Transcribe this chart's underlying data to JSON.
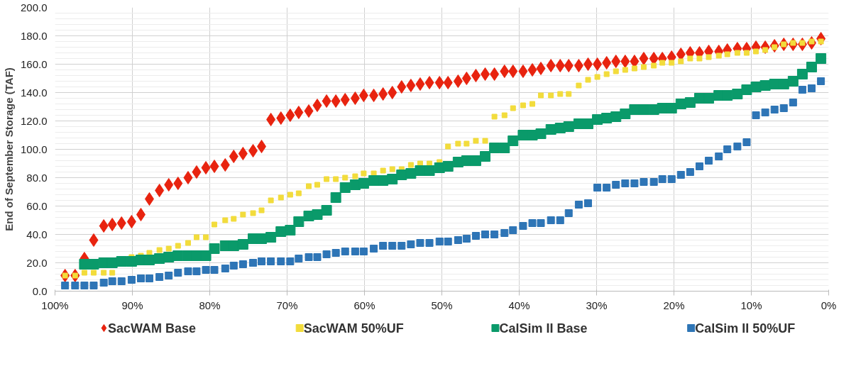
{
  "chart_data": {
    "type": "scatter",
    "ylabel": "End of September Storage (TAF)",
    "x": [
      98.7,
      97.4,
      96.2,
      95.0,
      93.7,
      92.6,
      91.4,
      90.1,
      88.9,
      87.8,
      86.5,
      85.3,
      84.1,
      82.8,
      81.7,
      80.5,
      79.4,
      78.0,
      76.9,
      75.7,
      74.4,
      73.3,
      72.1,
      70.8,
      69.6,
      68.5,
      67.2,
      66.1,
      64.9,
      63.7,
      62.5,
      61.2,
      60.1,
      58.8,
      57.6,
      56.4,
      55.2,
      54.0,
      52.8,
      51.6,
      50.3,
      49.2,
      47.9,
      46.8,
      45.6,
      44.4,
      43.2,
      41.9,
      40.8,
      39.5,
      38.3,
      37.2,
      35.9,
      34.7,
      33.6,
      32.3,
      31.1,
      29.9,
      28.7,
      27.5,
      26.3,
      25.1,
      23.9,
      22.6,
      21.5,
      20.3,
      19.1,
      17.9,
      16.7,
      15.5,
      14.2,
      13.1,
      11.8,
      10.6,
      9.4,
      8.2,
      7.0,
      5.8,
      4.6,
      3.4,
      2.2,
      1.0
    ],
    "series": [
      {
        "name": "SacWAM Base",
        "color": "#e8230f",
        "marker": "diamond",
        "values": [
          11,
          11,
          23,
          36,
          46,
          47,
          48,
          49,
          54,
          65,
          71,
          75,
          76,
          80,
          84,
          87,
          88,
          89,
          95,
          97,
          99,
          102,
          121,
          122,
          124,
          126,
          127,
          131,
          134,
          134,
          135,
          136,
          138,
          138,
          139,
          140,
          144,
          145,
          146,
          147,
          147,
          147,
          148,
          150,
          152,
          153,
          153,
          155,
          155,
          155,
          156,
          157,
          159,
          159,
          159,
          159,
          160,
          160,
          161,
          162,
          162,
          162,
          164,
          164,
          164,
          165,
          167,
          168,
          168,
          169,
          169,
          170,
          171,
          171,
          172,
          172,
          173,
          174,
          174,
          174,
          175,
          178
        ]
      },
      {
        "name": "SacWAM 50%UF",
        "color": "#f2dc3c",
        "marker": "square",
        "values": [
          11,
          11,
          13,
          13,
          13,
          13,
          null,
          24,
          25,
          27,
          29,
          30,
          32,
          34,
          38,
          38,
          47,
          50,
          51,
          54,
          55,
          57,
          64,
          66,
          68,
          69,
          74,
          75,
          79,
          79,
          80,
          81,
          83,
          83,
          85,
          86,
          86,
          89,
          90,
          90,
          91,
          102,
          104,
          104,
          106,
          106,
          123,
          124,
          129,
          131,
          132,
          138,
          138,
          139,
          139,
          145,
          149,
          151,
          153,
          155,
          156,
          157,
          158,
          159,
          161,
          161,
          162,
          164,
          164,
          165,
          166,
          167,
          168,
          168,
          169,
          170,
          172,
          174,
          175,
          175,
          176,
          176
        ]
      },
      {
        "name": "CalSim II Base",
        "color": "#0a9a6a",
        "marker": "square",
        "values": [
          null,
          null,
          19,
          19,
          20,
          20,
          21,
          21,
          22,
          22,
          23,
          24,
          25,
          25,
          25,
          25,
          30,
          32,
          32,
          33,
          37,
          37,
          38,
          42,
          43,
          49,
          53,
          54,
          57,
          66,
          73,
          75,
          76,
          78,
          78,
          79,
          82,
          83,
          85,
          85,
          87,
          88,
          91,
          92,
          92,
          95,
          101,
          101,
          106,
          110,
          110,
          111,
          114,
          115,
          116,
          118,
          118,
          121,
          122,
          123,
          125,
          128,
          128,
          128,
          129,
          129,
          132,
          133,
          136,
          136,
          138,
          138,
          139,
          142,
          144,
          145,
          146,
          146,
          148,
          153,
          158,
          164
        ]
      },
      {
        "name": "CalSim II 50%UF",
        "color": "#2e75b6",
        "marker": "square",
        "values": [
          4,
          4,
          4,
          4,
          6,
          7,
          7,
          8,
          9,
          9,
          10,
          11,
          13,
          14,
          14,
          15,
          15,
          16,
          18,
          19,
          20,
          21,
          21,
          21,
          21,
          23,
          24,
          24,
          26,
          27,
          28,
          28,
          28,
          30,
          32,
          32,
          32,
          33,
          34,
          34,
          35,
          35,
          36,
          37,
          39,
          40,
          40,
          41,
          43,
          46,
          48,
          48,
          50,
          50,
          55,
          61,
          62,
          73,
          73,
          75,
          76,
          76,
          77,
          77,
          79,
          79,
          82,
          84,
          88,
          92,
          95,
          100,
          102,
          105,
          124,
          126,
          128,
          129,
          133,
          142,
          143,
          148
        ]
      }
    ],
    "xlim": [
      100,
      0
    ],
    "xticks": [
      {
        "value": 100,
        "label": "100%"
      },
      {
        "value": 90,
        "label": "90%"
      },
      {
        "value": 80,
        "label": "80%"
      },
      {
        "value": 70,
        "label": "70%"
      },
      {
        "value": 60,
        "label": "60%"
      },
      {
        "value": 50,
        "label": "50%"
      },
      {
        "value": 40,
        "label": "40%"
      },
      {
        "value": 30,
        "label": "30%"
      },
      {
        "value": 20,
        "label": "20%"
      },
      {
        "value": 10,
        "label": "10%"
      },
      {
        "value": 0,
        "label": "0%"
      }
    ],
    "ylim": [
      0,
      200
    ],
    "yticks": [
      {
        "value": 0,
        "label": "0.0"
      },
      {
        "value": 20,
        "label": "20.0"
      },
      {
        "value": 40,
        "label": "40.0"
      },
      {
        "value": 60,
        "label": "60.0"
      },
      {
        "value": 80,
        "label": "80.0"
      },
      {
        "value": 100,
        "label": "100.0"
      },
      {
        "value": 120,
        "label": "120.0"
      },
      {
        "value": 140,
        "label": "140.0"
      },
      {
        "value": 160,
        "label": "160.0"
      },
      {
        "value": 180,
        "label": "180.0"
      },
      {
        "value": 200,
        "label": "200.0"
      }
    ],
    "grid": true,
    "legend": "bottom"
  }
}
